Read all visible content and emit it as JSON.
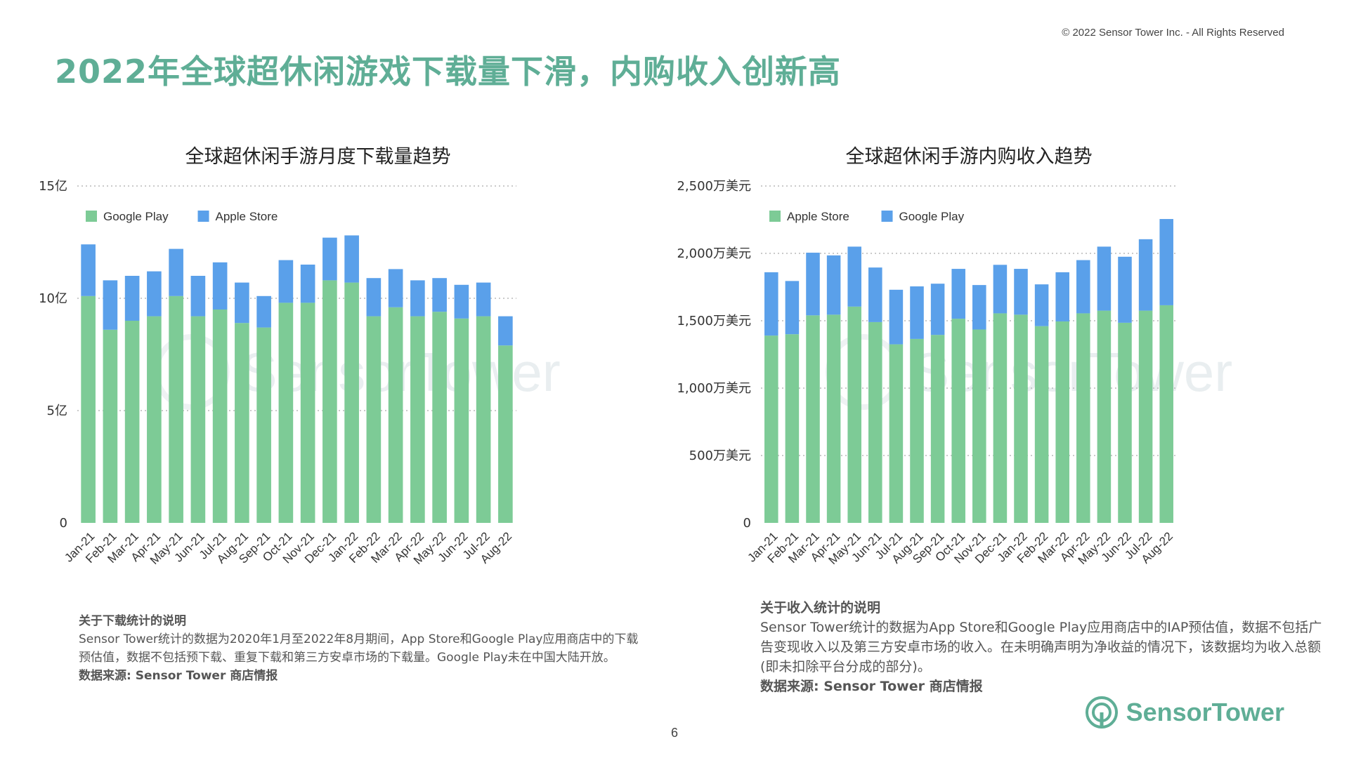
{
  "header": {
    "copyright": "© 2022 Sensor Tower Inc. - All Rights Reserved",
    "title": "2022年全球超休闲游戏下载量下滑，内购收入创新高"
  },
  "colors": {
    "green": "#7dcb96",
    "blue": "#5aa0ea",
    "title_green": "#5fae96",
    "grid": "#b9b9b9"
  },
  "chart_data": [
    {
      "type": "bar",
      "stacked": true,
      "title": "全球超休闲手游月度下载量趋势",
      "categories": [
        "Jan-21",
        "Feb-21",
        "Mar-21",
        "Apr-21",
        "May-21",
        "Jun-21",
        "Jul-21",
        "Aug-21",
        "Sep-21",
        "Oct-21",
        "Nov-21",
        "Dec-21",
        "Jan-22",
        "Feb-22",
        "Mar-22",
        "Apr-22",
        "May-22",
        "Jun-22",
        "Jul-22",
        "Aug-22"
      ],
      "series": [
        {
          "name": "Google Play",
          "color": "#7dcb96",
          "values": [
            10.1,
            8.6,
            9.0,
            9.2,
            10.1,
            9.2,
            9.5,
            8.9,
            8.7,
            9.8,
            9.8,
            10.8,
            10.7,
            9.2,
            9.6,
            9.2,
            9.4,
            9.1,
            9.2,
            7.9
          ]
        },
        {
          "name": "Apple Store",
          "color": "#5aa0ea",
          "values": [
            2.3,
            2.2,
            2.0,
            2.0,
            2.1,
            1.8,
            2.1,
            1.8,
            1.4,
            1.9,
            1.7,
            1.9,
            2.1,
            1.7,
            1.7,
            1.6,
            1.5,
            1.5,
            1.5,
            1.3
          ]
        }
      ],
      "legend": [
        "Google Play",
        "Apple Store"
      ],
      "ylim": [
        0,
        15
      ],
      "yticks": [
        {
          "value": 0,
          "label": "0"
        },
        {
          "value": 5,
          "label": "5亿"
        },
        {
          "value": 10,
          "label": "10亿"
        },
        {
          "value": 15,
          "label": "15亿"
        }
      ],
      "grid": true,
      "xlabel": "",
      "ylabel": ""
    },
    {
      "type": "bar",
      "stacked": true,
      "title": "全球超休闲手游内购收入趋势",
      "categories": [
        "Jan-21",
        "Feb-21",
        "Mar-21",
        "Apr-21",
        "May-21",
        "Jun-21",
        "Jul-21",
        "Aug-21",
        "Sep-21",
        "Oct-21",
        "Nov-21",
        "Dec-21",
        "Jan-22",
        "Feb-22",
        "Mar-22",
        "Apr-22",
        "May-22",
        "Jun-22",
        "Jul-22",
        "Aug-22"
      ],
      "series": [
        {
          "name": "Apple Store",
          "color": "#7dcb96",
          "values": [
            1390,
            1400,
            1540,
            1545,
            1605,
            1490,
            1325,
            1365,
            1395,
            1515,
            1435,
            1555,
            1545,
            1460,
            1495,
            1555,
            1575,
            1485,
            1575,
            1615
          ]
        },
        {
          "name": "Google Play",
          "color": "#5aa0ea",
          "values": [
            470,
            395,
            465,
            440,
            445,
            405,
            405,
            390,
            380,
            370,
            330,
            360,
            340,
            310,
            365,
            395,
            475,
            490,
            530,
            640
          ]
        }
      ],
      "legend": [
        "Apple Store",
        "Google Play"
      ],
      "ylim": [
        0,
        2500
      ],
      "yticks": [
        {
          "value": 0,
          "label": "0"
        },
        {
          "value": 500,
          "label": "500万美元"
        },
        {
          "value": 1000,
          "label": "1,000万美元"
        },
        {
          "value": 1500,
          "label": "1,500万美元"
        },
        {
          "value": 2000,
          "label": "2,000万美元"
        },
        {
          "value": 2500,
          "label": "2,500万美元"
        }
      ],
      "grid": true,
      "xlabel": "",
      "ylabel": ""
    }
  ],
  "watermark": {
    "text": "SensorTower"
  },
  "notes": {
    "downloads": {
      "title": "关于下载统计的说明",
      "body": "Sensor Tower统计的数据为2020年1月至2022年8月期间，App Store和Google Play应用商店中的下载预估值，数据不包括预下载、重复下载和第三方安卓市场的下载量。Google Play未在中国大陆开放。",
      "source": "数据来源: Sensor Tower 商店情报"
    },
    "revenue": {
      "title": "关于收入统计的说明",
      "body": "Sensor Tower统计的数据为App Store和Google Play应用商店中的IAP预估值，数据不包括广告变现收入以及第三方安卓市场的收入。在未明确声明为净收益的情况下，该数据均为收入总额(即未扣除平台分成的部分)。",
      "source": "数据来源: Sensor Tower 商店情报"
    }
  },
  "footer": {
    "page_number": "6",
    "brand": "SensorTower"
  }
}
